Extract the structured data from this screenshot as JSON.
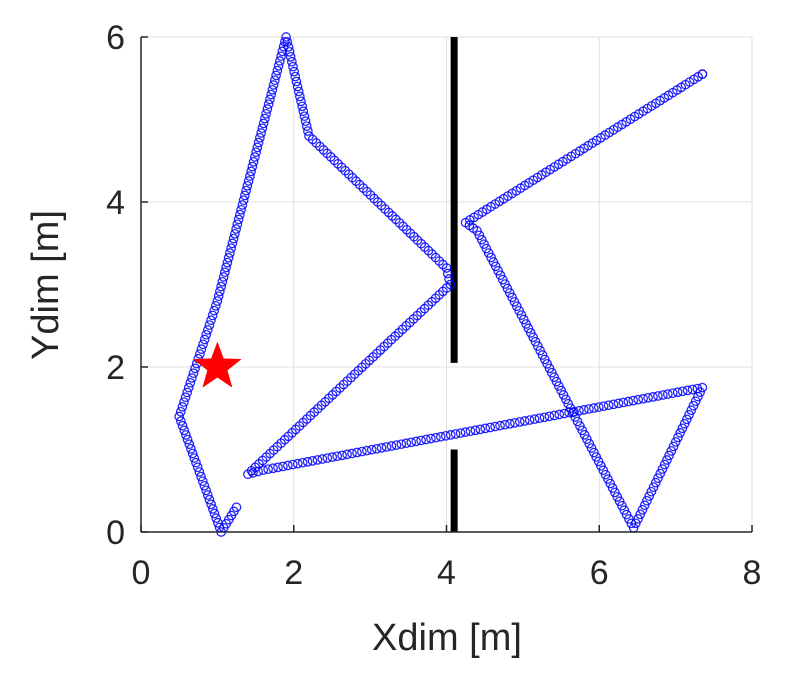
{
  "chart_data": {
    "type": "scatter",
    "xlabel": "Xdim [m]",
    "ylabel": "Ydim [m]",
    "xlim": [
      0,
      8
    ],
    "ylim": [
      0,
      6
    ],
    "xticks": [
      0,
      2,
      4,
      6,
      8
    ],
    "yticks": [
      0,
      2,
      4,
      6
    ],
    "grid": true,
    "colors": {
      "trajectory": "#0000ff",
      "wall": "#000000",
      "marker": "#ff0000",
      "grid": "#e0e0e0",
      "axis": "#262626"
    },
    "trajectory": {
      "marker": "circle-open",
      "waypoints": [
        [
          1.25,
          0.3
        ],
        [
          1.05,
          0.0
        ],
        [
          0.5,
          1.4
        ],
        [
          1.0,
          2.8
        ],
        [
          1.9,
          6.0
        ],
        [
          2.2,
          4.8
        ],
        [
          4.0,
          3.2
        ],
        [
          4.05,
          3.0
        ],
        [
          1.4,
          0.7
        ],
        [
          1.6,
          0.75
        ],
        [
          7.35,
          1.75
        ],
        [
          6.45,
          0.05
        ],
        [
          4.4,
          3.65
        ],
        [
          4.25,
          3.75
        ],
        [
          7.35,
          5.55
        ]
      ]
    },
    "walls": [
      {
        "x": 4.1,
        "y": [
          2.05,
          6.0
        ]
      },
      {
        "x": 4.1,
        "y": [
          0.0,
          1.0
        ]
      }
    ],
    "markers": [
      {
        "shape": "star",
        "x": 1.0,
        "y": 2.0
      }
    ]
  }
}
